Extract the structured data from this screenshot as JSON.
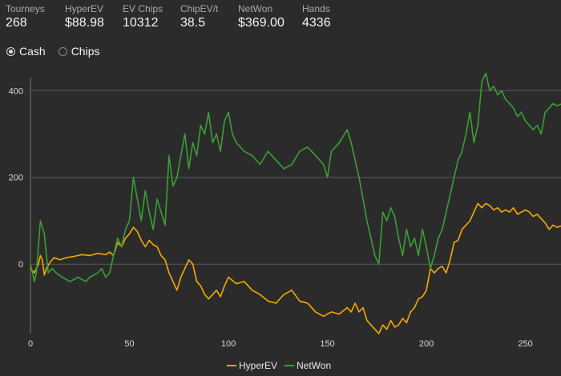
{
  "stats": [
    {
      "label": "Tourneys",
      "value": "268"
    },
    {
      "label": "HyperEV",
      "value": "$88.98"
    },
    {
      "label": "EV Chips",
      "value": "10312"
    },
    {
      "label": "ChipEV/t",
      "value": "38.5"
    },
    {
      "label": "NetWon",
      "value": "$369.00"
    },
    {
      "label": "Hands",
      "value": "4336"
    }
  ],
  "mode": {
    "options": [
      {
        "label": "Cash",
        "checked": true
      },
      {
        "label": "Chips",
        "checked": false
      }
    ]
  },
  "chart_data": {
    "type": "line",
    "xlim": [
      0,
      268
    ],
    "ylim": [
      -160,
      430
    ],
    "x_ticks": [
      0,
      50,
      100,
      150,
      200,
      250
    ],
    "y_ticks": [
      0,
      200,
      400
    ],
    "grid": "horizontal",
    "legend_position": "bottom",
    "series": [
      {
        "name": "HyperEV",
        "color": "#f5a800",
        "points": [
          [
            0,
            -10
          ],
          [
            2,
            -20
          ],
          [
            4,
            0
          ],
          [
            5,
            20
          ],
          [
            6,
            10
          ],
          [
            7,
            -25
          ],
          [
            8,
            -10
          ],
          [
            10,
            5
          ],
          [
            12,
            15
          ],
          [
            15,
            10
          ],
          [
            18,
            15
          ],
          [
            22,
            18
          ],
          [
            26,
            22
          ],
          [
            30,
            20
          ],
          [
            34,
            25
          ],
          [
            38,
            22
          ],
          [
            40,
            28
          ],
          [
            42,
            20
          ],
          [
            44,
            50
          ],
          [
            46,
            40
          ],
          [
            48,
            60
          ],
          [
            50,
            70
          ],
          [
            52,
            85
          ],
          [
            54,
            75
          ],
          [
            56,
            55
          ],
          [
            58,
            40
          ],
          [
            60,
            55
          ],
          [
            62,
            45
          ],
          [
            64,
            40
          ],
          [
            66,
            20
          ],
          [
            68,
            10
          ],
          [
            70,
            -20
          ],
          [
            72,
            -40
          ],
          [
            74,
            -60
          ],
          [
            76,
            -30
          ],
          [
            78,
            -10
          ],
          [
            80,
            10
          ],
          [
            82,
            0
          ],
          [
            84,
            -40
          ],
          [
            86,
            -50
          ],
          [
            88,
            -70
          ],
          [
            90,
            -80
          ],
          [
            92,
            -70
          ],
          [
            94,
            -60
          ],
          [
            96,
            -75
          ],
          [
            98,
            -50
          ],
          [
            100,
            -30
          ],
          [
            104,
            -45
          ],
          [
            108,
            -40
          ],
          [
            112,
            -60
          ],
          [
            116,
            -70
          ],
          [
            120,
            -85
          ],
          [
            124,
            -90
          ],
          [
            128,
            -70
          ],
          [
            132,
            -60
          ],
          [
            136,
            -85
          ],
          [
            140,
            -90
          ],
          [
            144,
            -110
          ],
          [
            148,
            -120
          ],
          [
            152,
            -110
          ],
          [
            156,
            -115
          ],
          [
            160,
            -100
          ],
          [
            162,
            -110
          ],
          [
            164,
            -90
          ],
          [
            166,
            -110
          ],
          [
            168,
            -100
          ],
          [
            170,
            -130
          ],
          [
            172,
            -140
          ],
          [
            174,
            -150
          ],
          [
            176,
            -160
          ],
          [
            178,
            -140
          ],
          [
            180,
            -150
          ],
          [
            182,
            -130
          ],
          [
            184,
            -145
          ],
          [
            186,
            -140
          ],
          [
            188,
            -125
          ],
          [
            190,
            -135
          ],
          [
            192,
            -110
          ],
          [
            194,
            -100
          ],
          [
            196,
            -80
          ],
          [
            198,
            -75
          ],
          [
            200,
            -60
          ],
          [
            202,
            -10
          ],
          [
            204,
            -20
          ],
          [
            206,
            -10
          ],
          [
            208,
            -5
          ],
          [
            210,
            -20
          ],
          [
            212,
            10
          ],
          [
            214,
            50
          ],
          [
            216,
            55
          ],
          [
            218,
            80
          ],
          [
            220,
            90
          ],
          [
            222,
            100
          ],
          [
            224,
            120
          ],
          [
            226,
            140
          ],
          [
            228,
            130
          ],
          [
            230,
            140
          ],
          [
            232,
            135
          ],
          [
            234,
            125
          ],
          [
            236,
            130
          ],
          [
            238,
            120
          ],
          [
            240,
            125
          ],
          [
            242,
            120
          ],
          [
            244,
            130
          ],
          [
            246,
            115
          ],
          [
            248,
            120
          ],
          [
            250,
            125
          ],
          [
            252,
            120
          ],
          [
            254,
            110
          ],
          [
            256,
            115
          ],
          [
            258,
            105
          ],
          [
            260,
            95
          ],
          [
            262,
            80
          ],
          [
            264,
            90
          ],
          [
            266,
            85
          ],
          [
            268,
            88
          ]
        ]
      },
      {
        "name": "NetWon",
        "color": "#3b9e36",
        "points": [
          [
            0,
            0
          ],
          [
            2,
            -40
          ],
          [
            3,
            -20
          ],
          [
            5,
            100
          ],
          [
            7,
            70
          ],
          [
            9,
            -20
          ],
          [
            11,
            -10
          ],
          [
            13,
            -20
          ],
          [
            16,
            -30
          ],
          [
            20,
            -40
          ],
          [
            24,
            -30
          ],
          [
            28,
            -40
          ],
          [
            30,
            -30
          ],
          [
            34,
            -20
          ],
          [
            36,
            -10
          ],
          [
            38,
            -30
          ],
          [
            40,
            -20
          ],
          [
            42,
            20
          ],
          [
            44,
            60
          ],
          [
            46,
            40
          ],
          [
            48,
            80
          ],
          [
            50,
            100
          ],
          [
            52,
            200
          ],
          [
            54,
            150
          ],
          [
            56,
            100
          ],
          [
            58,
            170
          ],
          [
            60,
            120
          ],
          [
            62,
            80
          ],
          [
            64,
            150
          ],
          [
            66,
            120
          ],
          [
            68,
            90
          ],
          [
            70,
            250
          ],
          [
            72,
            180
          ],
          [
            74,
            200
          ],
          [
            76,
            250
          ],
          [
            78,
            300
          ],
          [
            80,
            220
          ],
          [
            82,
            280
          ],
          [
            84,
            250
          ],
          [
            86,
            320
          ],
          [
            88,
            300
          ],
          [
            90,
            350
          ],
          [
            92,
            280
          ],
          [
            94,
            300
          ],
          [
            96,
            260
          ],
          [
            98,
            330
          ],
          [
            100,
            350
          ],
          [
            102,
            300
          ],
          [
            104,
            280
          ],
          [
            108,
            260
          ],
          [
            112,
            250
          ],
          [
            116,
            230
          ],
          [
            120,
            260
          ],
          [
            124,
            240
          ],
          [
            128,
            220
          ],
          [
            132,
            230
          ],
          [
            136,
            260
          ],
          [
            140,
            270
          ],
          [
            144,
            250
          ],
          [
            148,
            230
          ],
          [
            150,
            200
          ],
          [
            152,
            260
          ],
          [
            156,
            280
          ],
          [
            160,
            310
          ],
          [
            162,
            280
          ],
          [
            164,
            240
          ],
          [
            166,
            200
          ],
          [
            168,
            150
          ],
          [
            170,
            100
          ],
          [
            172,
            60
          ],
          [
            174,
            20
          ],
          [
            176,
            0
          ],
          [
            178,
            120
          ],
          [
            180,
            100
          ],
          [
            182,
            130
          ],
          [
            184,
            110
          ],
          [
            186,
            60
          ],
          [
            188,
            20
          ],
          [
            190,
            80
          ],
          [
            192,
            40
          ],
          [
            194,
            60
          ],
          [
            196,
            20
          ],
          [
            198,
            80
          ],
          [
            200,
            40
          ],
          [
            202,
            -10
          ],
          [
            204,
            20
          ],
          [
            206,
            60
          ],
          [
            208,
            80
          ],
          [
            210,
            120
          ],
          [
            212,
            160
          ],
          [
            214,
            200
          ],
          [
            216,
            240
          ],
          [
            218,
            260
          ],
          [
            220,
            300
          ],
          [
            222,
            350
          ],
          [
            224,
            280
          ],
          [
            226,
            320
          ],
          [
            228,
            420
          ],
          [
            230,
            440
          ],
          [
            232,
            400
          ],
          [
            234,
            410
          ],
          [
            236,
            390
          ],
          [
            238,
            400
          ],
          [
            240,
            380
          ],
          [
            242,
            370
          ],
          [
            244,
            360
          ],
          [
            246,
            340
          ],
          [
            248,
            350
          ],
          [
            250,
            330
          ],
          [
            252,
            320
          ],
          [
            254,
            310
          ],
          [
            256,
            320
          ],
          [
            258,
            300
          ],
          [
            260,
            350
          ],
          [
            262,
            360
          ],
          [
            264,
            370
          ],
          [
            266,
            365
          ],
          [
            268,
            369
          ]
        ]
      }
    ]
  }
}
